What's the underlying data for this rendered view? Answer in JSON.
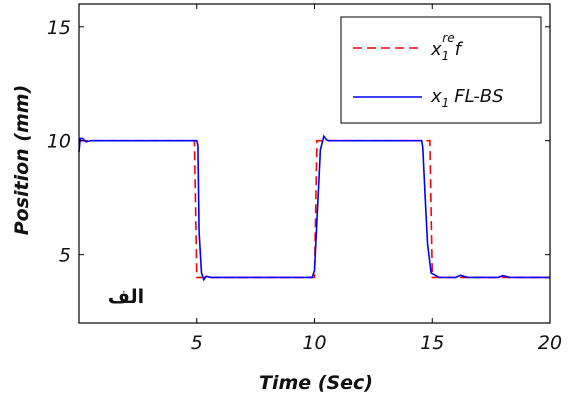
{
  "chart_data": {
    "type": "line",
    "xlabel": "Time (Sec)",
    "ylabel": "Position (mm)",
    "xlim": [
      0,
      20
    ],
    "ylim": [
      2,
      16
    ],
    "xticks": [
      5,
      10,
      15,
      20
    ],
    "yticks": [
      5,
      10,
      15
    ],
    "grid": false,
    "legend_position": "top-right",
    "annotation": "الف",
    "series": [
      {
        "name_main": "x",
        "name_sub": "1",
        "name_sup": "re",
        "name_suffix": "f",
        "style": "dashed",
        "color": "#ff0000",
        "x": [
          0,
          4.9,
          5.0,
          10.0,
          10.1,
          14.9,
          15.0,
          20
        ],
        "y": [
          10,
          10,
          4,
          4,
          10,
          10,
          4,
          4
        ]
      },
      {
        "name_main": "x",
        "name_sub": "1",
        "name_suffix": "FL-BS",
        "style": "solid",
        "color": "#0000ff",
        "x": [
          0,
          0.05,
          0.15,
          0.3,
          0.5,
          5.0,
          5.05,
          5.1,
          5.2,
          5.3,
          5.4,
          5.6,
          9.9,
          10.0,
          10.25,
          10.4,
          10.5,
          10.6,
          10.8,
          14.55,
          14.6,
          14.7,
          14.8,
          14.95,
          15.3,
          16.0,
          16.2,
          16.5,
          17.8,
          18.0,
          18.3,
          20
        ],
        "y": [
          9.5,
          10.1,
          10.1,
          9.95,
          10,
          10,
          9.8,
          6,
          4.2,
          3.9,
          4.05,
          4,
          4,
          4.3,
          9.6,
          10.2,
          10.05,
          10,
          10,
          10,
          9.7,
          7.5,
          5.5,
          4.2,
          4,
          4,
          4.1,
          4,
          4,
          4.08,
          4,
          4
        ]
      }
    ]
  }
}
